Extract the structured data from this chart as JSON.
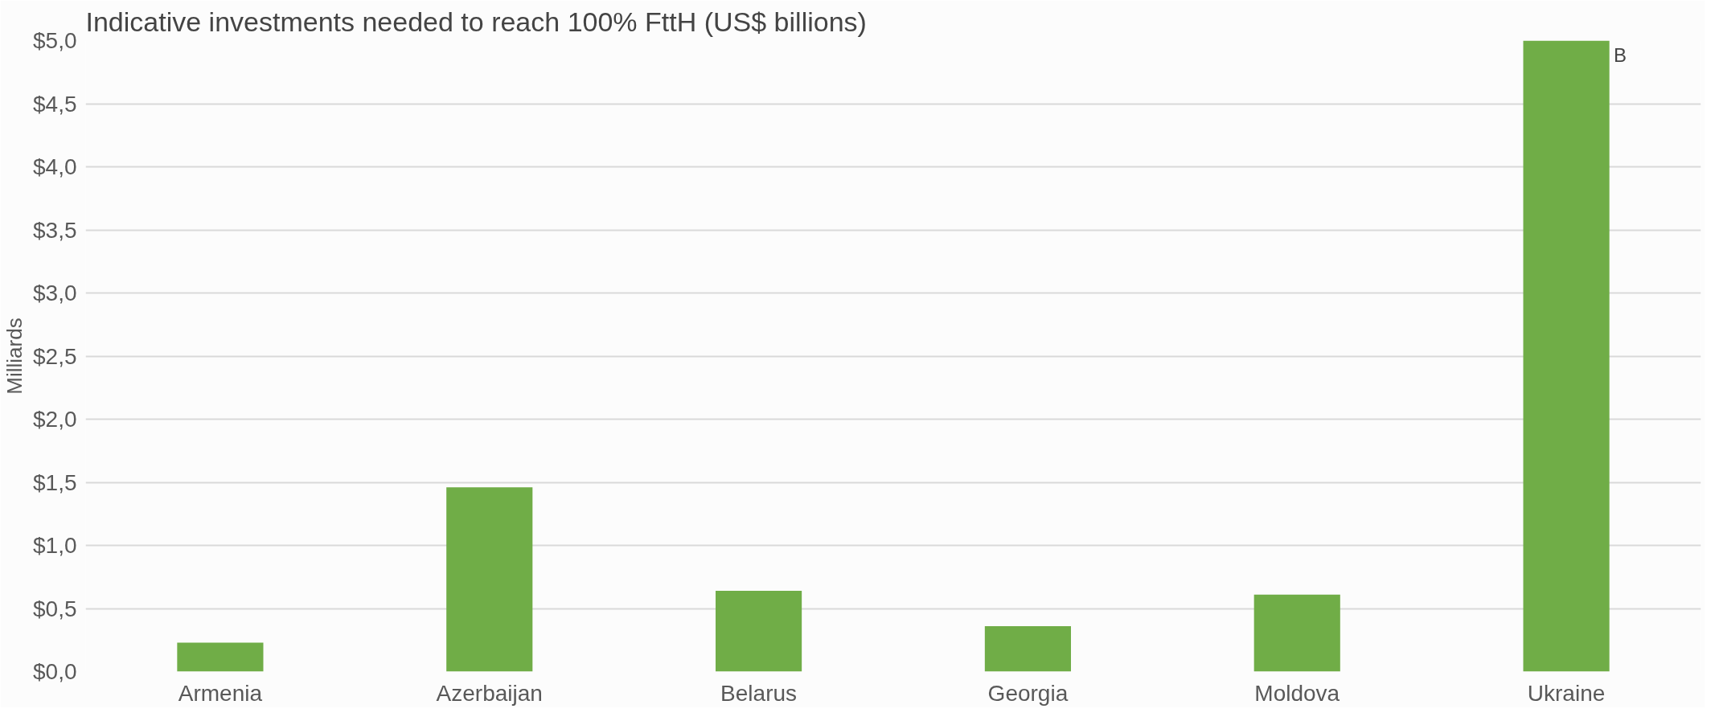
{
  "chart_data": {
    "type": "bar",
    "title": "Indicative investments needed to reach 100% FttH (US$ billions)",
    "ylabel": "Milliards",
    "categories": [
      "Armenia",
      "Azerbaijan",
      "Belarus",
      "Georgia",
      "Moldova",
      "Ukraine"
    ],
    "values": [
      0.23,
      1.46,
      0.64,
      0.36,
      0.61,
      5.0
    ],
    "color": "#70ad47",
    "ylim": [
      0,
      5.0
    ],
    "yticks": [
      {
        "value": 0,
        "label": "$0,0"
      },
      {
        "value": 0.5,
        "label": "$0,5"
      },
      {
        "value": 1.0,
        "label": "$1,0"
      },
      {
        "value": 1.5,
        "label": "$1,5"
      },
      {
        "value": 2.0,
        "label": "$2,0"
      },
      {
        "value": 2.5,
        "label": "$2,5"
      },
      {
        "value": 3.0,
        "label": "$3,0"
      },
      {
        "value": 3.5,
        "label": "$3,5"
      },
      {
        "value": 4.0,
        "label": "$4,0"
      },
      {
        "value": 4.5,
        "label": "$4,5"
      },
      {
        "value": 5.0,
        "label": "$5,0"
      }
    ],
    "annotations": [
      {
        "text": "B",
        "x": "Ukraine",
        "y": 5.0
      }
    ],
    "grid": "y"
  }
}
